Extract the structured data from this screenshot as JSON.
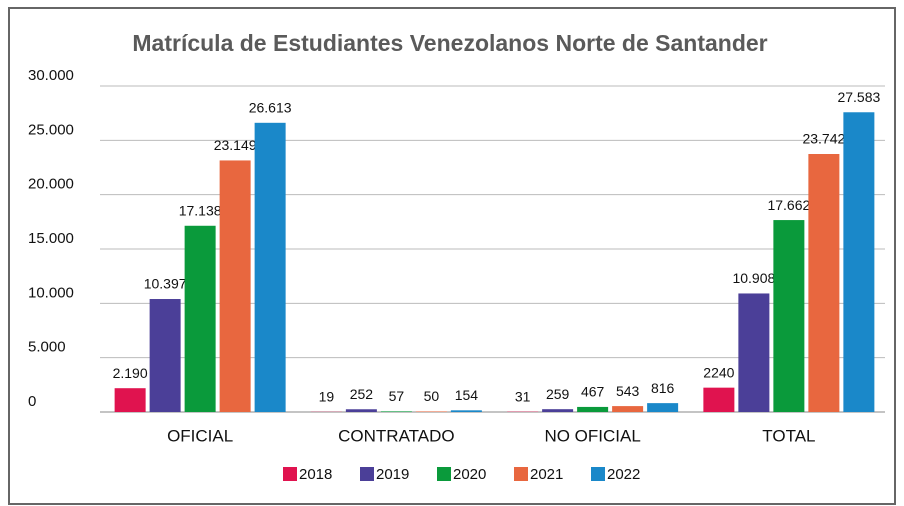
{
  "chart_data": {
    "type": "bar",
    "title": "Matrícula de Estudiantes Venezolanos Norte de Santander",
    "categories": [
      "OFICIAL",
      "CONTRATADO",
      "NO OFICIAL",
      "TOTAL"
    ],
    "series": [
      {
        "name": "2018",
        "color": "#e0134f",
        "values": [
          2190,
          19,
          31,
          2240
        ],
        "value_labels": [
          "2.190",
          "19",
          "31",
          "2240"
        ]
      },
      {
        "name": "2019",
        "color": "#4b3f98",
        "values": [
          10397,
          252,
          259,
          10908
        ],
        "value_labels": [
          "10.397",
          "252",
          "259",
          "10.908"
        ]
      },
      {
        "name": "2020",
        "color": "#0a9a3b",
        "values": [
          17138,
          57,
          467,
          17662
        ],
        "value_labels": [
          "17.138",
          "57",
          "467",
          "17.662"
        ]
      },
      {
        "name": "2021",
        "color": "#e8673f",
        "values": [
          23149,
          50,
          543,
          23742
        ],
        "value_labels": [
          "23.149",
          "50",
          "543",
          "23.742"
        ]
      },
      {
        "name": "2022",
        "color": "#1a88c9",
        "values": [
          26613,
          154,
          816,
          27583
        ],
        "value_labels": [
          "26.613",
          "154",
          "816",
          "27.583"
        ]
      }
    ],
    "ylim": [
      0,
      30000
    ],
    "yticks": [
      0,
      {
        "value": 5000,
        "label": "5.000"
      },
      {
        "value": 10000,
        "label": "10.000"
      },
      {
        "value": 15000,
        "label": "15.000"
      },
      {
        "value": 20000,
        "label": "20.000"
      },
      {
        "value": 25000,
        "label": "25.000"
      },
      {
        "value": 30000,
        "label": "30.000"
      }
    ],
    "grid": true,
    "legend": "bottom"
  }
}
